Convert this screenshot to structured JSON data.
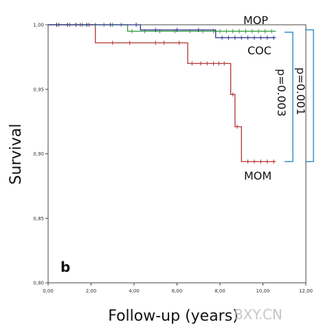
{
  "chart_data": {
    "type": "line",
    "step": true,
    "panel_label": "b",
    "xlabel": "Follow-up (years)",
    "ylabel": "Survival",
    "xlim": [
      0,
      12
    ],
    "ylim": [
      0.8,
      1.0
    ],
    "x_ticks": [
      0,
      2,
      4,
      6,
      8,
      10,
      12
    ],
    "x_tick_labels": [
      "0,00",
      "2,00",
      "4,00",
      "6,00",
      "8,00",
      "10,00",
      "12,00"
    ],
    "y_ticks": [
      0.8,
      0.85,
      0.9,
      0.95,
      1.0
    ],
    "y_tick_labels": [
      "0,80",
      "0,85",
      "0,90",
      "0,95",
      "1,00"
    ],
    "series": [
      {
        "name": "MOM",
        "color": "#b03030",
        "steps": [
          [
            0,
            1.0
          ],
          [
            2.2,
            0.986
          ],
          [
            6.5,
            0.97
          ],
          [
            8.5,
            0.946
          ],
          [
            8.7,
            0.921
          ],
          [
            9.0,
            0.894
          ],
          [
            10.6,
            0.894
          ]
        ],
        "censored": [
          [
            0.5,
            1.0
          ],
          [
            1.0,
            1.0
          ],
          [
            1.5,
            1.0
          ],
          [
            1.9,
            1.0
          ],
          [
            3.0,
            0.986
          ],
          [
            3.8,
            0.986
          ],
          [
            5.0,
            0.986
          ],
          [
            5.4,
            0.986
          ],
          [
            6.1,
            0.986
          ],
          [
            6.7,
            0.97
          ],
          [
            7.1,
            0.97
          ],
          [
            7.4,
            0.97
          ],
          [
            7.7,
            0.97
          ],
          [
            7.95,
            0.97
          ],
          [
            8.2,
            0.97
          ],
          [
            8.6,
            0.946
          ],
          [
            8.8,
            0.921
          ],
          [
            9.3,
            0.894
          ],
          [
            9.6,
            0.894
          ],
          [
            9.9,
            0.894
          ],
          [
            10.2,
            0.894
          ],
          [
            10.5,
            0.894
          ]
        ]
      },
      {
        "name": "MOP",
        "color": "#2e9a3c",
        "steps": [
          [
            0,
            1.0
          ],
          [
            3.7,
            0.995
          ],
          [
            10.6,
            0.995
          ]
        ],
        "censored": [
          [
            1.6,
            1.0
          ],
          [
            2.2,
            1.0
          ],
          [
            2.6,
            1.0
          ],
          [
            3.0,
            1.0
          ],
          [
            3.4,
            1.0
          ],
          [
            3.9,
            0.995
          ],
          [
            4.5,
            0.995
          ],
          [
            5.2,
            0.995
          ],
          [
            5.9,
            0.995
          ],
          [
            6.6,
            0.995
          ],
          [
            7.2,
            0.995
          ],
          [
            7.7,
            0.995
          ],
          [
            8.0,
            0.995
          ],
          [
            8.3,
            0.995
          ],
          [
            8.6,
            0.995
          ],
          [
            8.9,
            0.995
          ],
          [
            9.2,
            0.995
          ],
          [
            9.5,
            0.995
          ],
          [
            9.8,
            0.995
          ],
          [
            10.1,
            0.995
          ],
          [
            10.4,
            0.995
          ]
        ]
      },
      {
        "name": "COC",
        "color": "#2a2f8a",
        "steps": [
          [
            0,
            1.0
          ],
          [
            4.3,
            0.996
          ],
          [
            7.8,
            0.99
          ],
          [
            10.6,
            0.99
          ]
        ],
        "censored": [
          [
            0.4,
            1.0
          ],
          [
            0.9,
            1.0
          ],
          [
            1.3,
            1.0
          ],
          [
            1.8,
            1.0
          ],
          [
            2.9,
            1.0
          ],
          [
            4.1,
            1.0
          ],
          [
            5.0,
            0.996
          ],
          [
            6.0,
            0.996
          ],
          [
            7.0,
            0.996
          ],
          [
            8.1,
            0.99
          ],
          [
            8.4,
            0.99
          ],
          [
            8.7,
            0.99
          ],
          [
            9.0,
            0.99
          ],
          [
            9.3,
            0.99
          ],
          [
            9.6,
            0.99
          ],
          [
            9.9,
            0.99
          ],
          [
            10.2,
            0.99
          ],
          [
            10.5,
            0.99
          ]
        ]
      }
    ],
    "series_labels": [
      "MOP",
      "COC",
      "MOM"
    ],
    "annotations": [
      {
        "text": "p=0.003",
        "bracket_from": "COC",
        "bracket_to": "MOM"
      },
      {
        "text": "p=0.001",
        "bracket_from": "MOP",
        "bracket_to": "MOM"
      }
    ],
    "bracket_color": "#3a8fc8",
    "watermark": "BXY.CN",
    "grid": false,
    "legend": "none"
  }
}
